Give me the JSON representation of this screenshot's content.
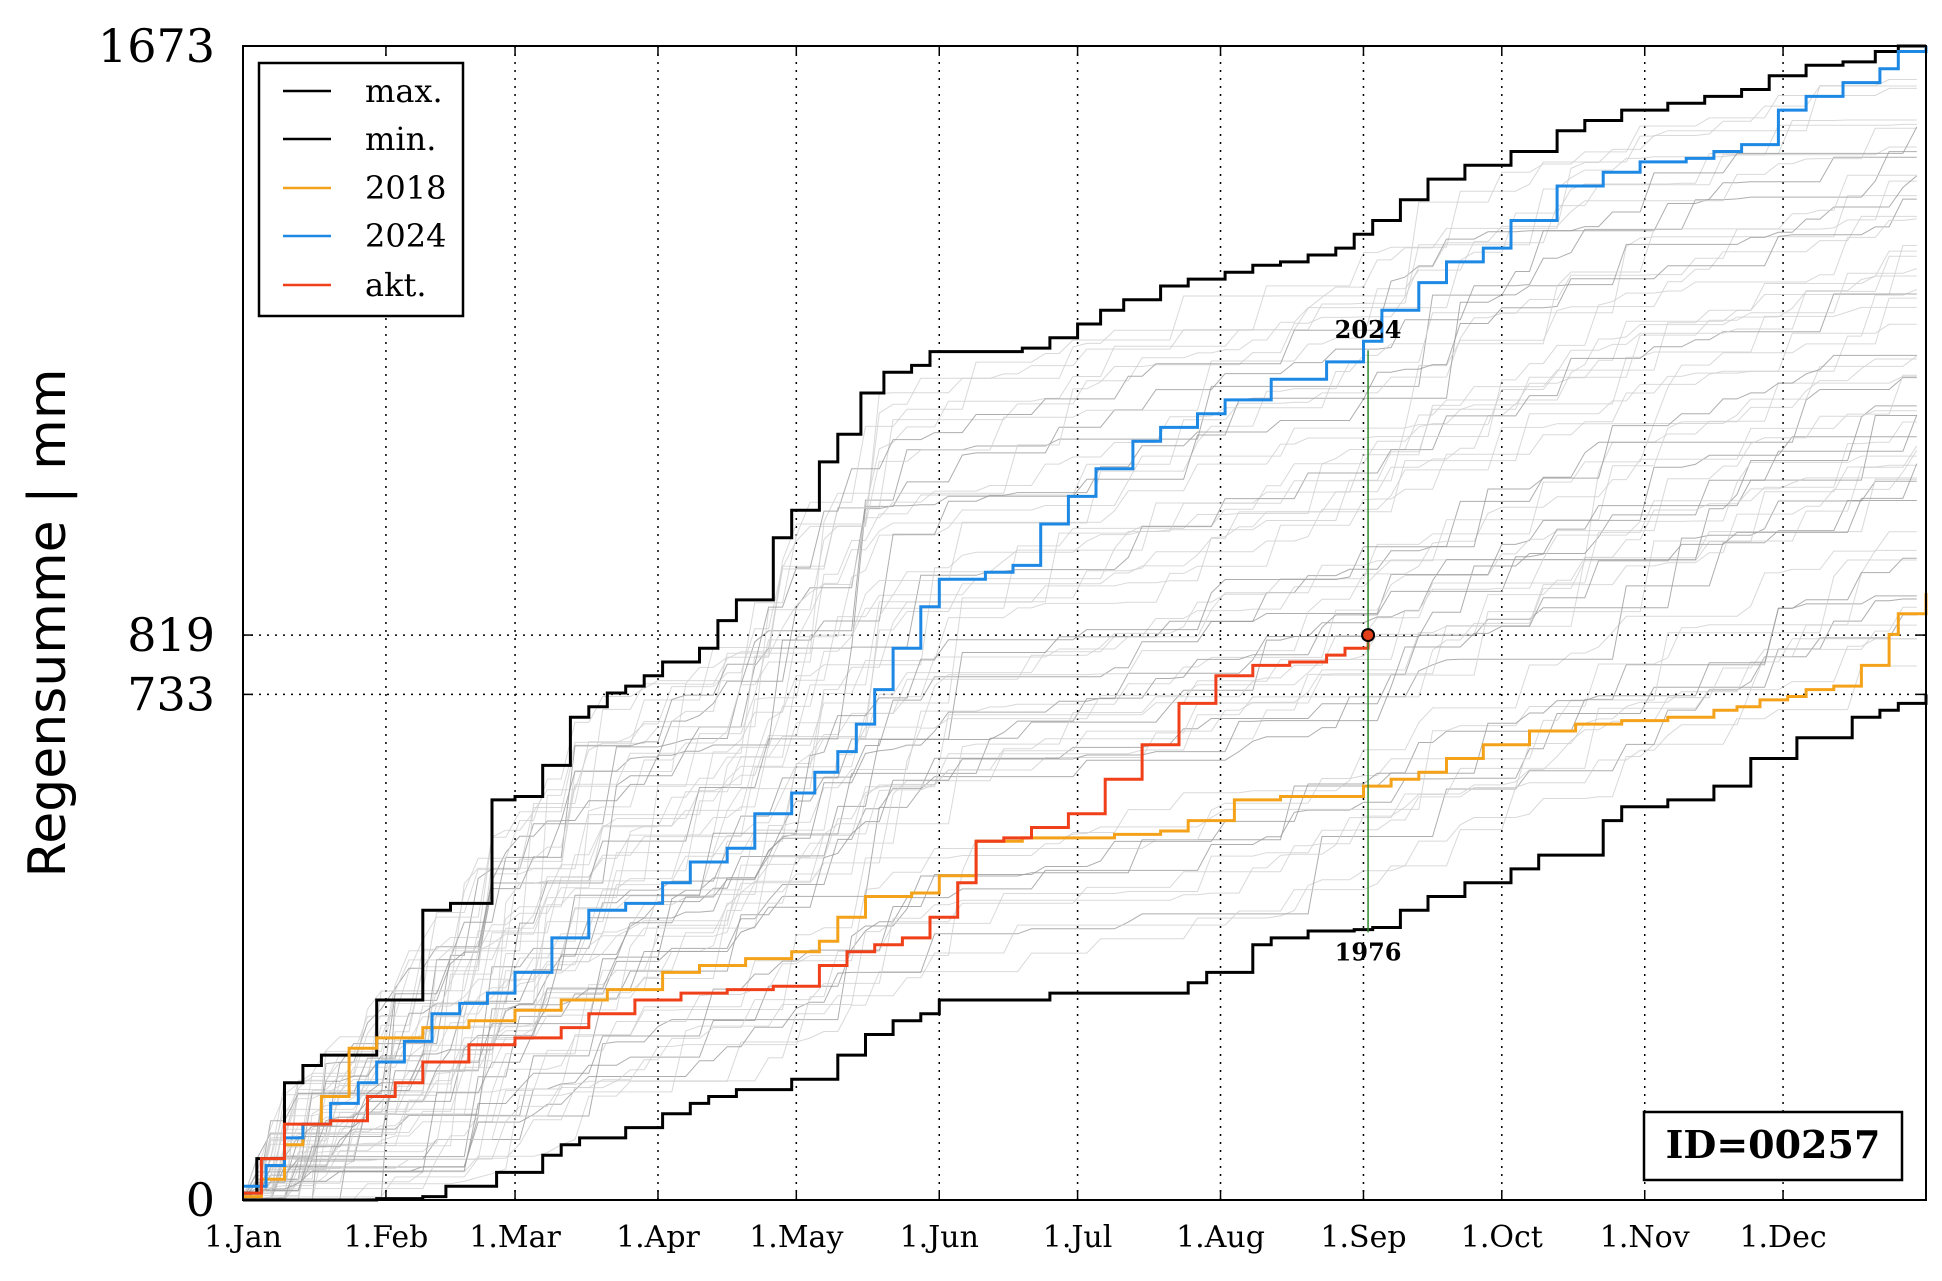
{
  "chart_data": {
    "type": "line",
    "ylabel": "Regensumme | mm",
    "xlabel": "",
    "ylim": [
      0,
      1673
    ],
    "x_day_range": [
      1,
      366
    ],
    "x_tick_labels": [
      "1.Jan",
      "1.Feb",
      "1.Mar",
      "1.Apr",
      "1.May",
      "1.Jun",
      "1.Jul",
      "1.Aug",
      "1.Sep",
      "1.Oct",
      "1.Nov",
      "1.Dec"
    ],
    "x_tick_days": [
      1,
      32,
      60,
      91,
      121,
      152,
      182,
      213,
      244,
      274,
      305,
      335
    ],
    "y_tick_labels": [
      "0",
      "733",
      "819",
      "1673"
    ],
    "y_tick_values": [
      0,
      733,
      819,
      1673
    ],
    "reference_lines_y": [
      733,
      819
    ],
    "grid": "dotted",
    "legend_position": "top-left",
    "legend": [
      "max.",
      "min.",
      "2018",
      "2024",
      "akt."
    ],
    "current_point": {
      "day": 245,
      "value": 819
    },
    "range_marker": {
      "day": 245,
      "top_value": 1232,
      "bottom_value": 388,
      "top_label": "2024",
      "bottom_label": "1976"
    },
    "id_label": "ID=00257",
    "series": [
      {
        "name": "max.",
        "color": "#000000",
        "x": [
          1,
          4,
          10,
          14,
          18,
          30,
          40,
          46,
          55,
          60,
          66,
          72,
          76,
          80,
          84,
          88,
          92,
          100,
          104,
          108,
          116,
          120,
          126,
          130,
          135,
          140,
          146,
          150,
          160,
          170,
          176,
          182,
          187,
          192,
          200,
          206,
          214,
          220,
          226,
          232,
          238,
          242,
          246,
          252,
          258,
          266,
          276,
          286,
          292,
          300,
          310,
          318,
          326,
          332,
          340,
          348,
          355,
          360,
          366
        ],
        "y": [
          10,
          60,
          170,
          195,
          210,
          290,
          420,
          430,
          580,
          585,
          630,
          700,
          715,
          735,
          745,
          760,
          780,
          800,
          840,
          870,
          960,
          1000,
          1070,
          1110,
          1170,
          1200,
          1210,
          1230,
          1230,
          1235,
          1250,
          1270,
          1290,
          1305,
          1325,
          1335,
          1345,
          1355,
          1360,
          1370,
          1380,
          1400,
          1420,
          1450,
          1480,
          1500,
          1520,
          1550,
          1565,
          1580,
          1590,
          1600,
          1610,
          1630,
          1645,
          1650,
          1665,
          1673,
          1673
        ]
      },
      {
        "name": "min.",
        "color": "#000000",
        "x": [
          1,
          20,
          30,
          40,
          45,
          56,
          66,
          70,
          74,
          84,
          92,
          98,
          102,
          108,
          120,
          130,
          136,
          142,
          148,
          152,
          166,
          176,
          200,
          206,
          210,
          220,
          224,
          232,
          242,
          246,
          252,
          258,
          266,
          276,
          282,
          296,
          300,
          310,
          320,
          328,
          338,
          350,
          356,
          360,
          366
        ],
        "y": [
          0,
          0,
          2,
          5,
          20,
          40,
          65,
          80,
          90,
          105,
          125,
          140,
          150,
          160,
          175,
          210,
          240,
          260,
          270,
          290,
          290,
          300,
          300,
          315,
          330,
          370,
          380,
          390,
          392,
          395,
          420,
          440,
          460,
          480,
          500,
          550,
          570,
          580,
          600,
          640,
          670,
          700,
          710,
          720,
          733
        ]
      },
      {
        "name": "2018",
        "color": "#f5a21b",
        "x": [
          1,
          5,
          10,
          14,
          18,
          24,
          30,
          40,
          50,
          60,
          70,
          80,
          92,
          100,
          110,
          120,
          126,
          130,
          136,
          140,
          146,
          152,
          160,
          170,
          178,
          190,
          200,
          206,
          216,
          226,
          236,
          244,
          250,
          256,
          262,
          270,
          280,
          290,
          300,
          310,
          320,
          325,
          330,
          336,
          340,
          346,
          352,
          358,
          360,
          366
        ],
        "y": [
          5,
          30,
          80,
          110,
          150,
          220,
          235,
          250,
          260,
          275,
          290,
          305,
          330,
          340,
          350,
          360,
          375,
          410,
          440,
          440,
          445,
          470,
          520,
          525,
          525,
          530,
          535,
          550,
          580,
          585,
          585,
          600,
          610,
          620,
          640,
          660,
          680,
          690,
          695,
          700,
          710,
          715,
          725,
          730,
          740,
          745,
          775,
          820,
          850,
          880
        ]
      },
      {
        "name": "2024",
        "color": "#1e88e5",
        "x": [
          1,
          6,
          10,
          14,
          20,
          26,
          30,
          36,
          42,
          48,
          54,
          60,
          68,
          76,
          84,
          92,
          98,
          106,
          112,
          120,
          125,
          130,
          134,
          138,
          142,
          148,
          152,
          162,
          168,
          174,
          180,
          186,
          194,
          200,
          208,
          214,
          224,
          236,
          244,
          248,
          256,
          262,
          270,
          276,
          286,
          296,
          304,
          314,
          320,
          326,
          334,
          340,
          348,
          356,
          360,
          366
        ],
        "y": [
          20,
          50,
          90,
          110,
          140,
          170,
          200,
          230,
          270,
          285,
          300,
          330,
          380,
          420,
          430,
          460,
          490,
          510,
          560,
          590,
          620,
          650,
          690,
          740,
          800,
          860,
          900,
          910,
          920,
          980,
          1020,
          1060,
          1100,
          1120,
          1140,
          1160,
          1190,
          1215,
          1245,
          1290,
          1330,
          1360,
          1380,
          1420,
          1470,
          1490,
          1505,
          1510,
          1520,
          1530,
          1580,
          1600,
          1620,
          1640,
          1665,
          1673
        ]
      },
      {
        "name": "akt.",
        "color": "#f0401a",
        "x": [
          1,
          5,
          10,
          20,
          28,
          34,
          40,
          50,
          60,
          70,
          76,
          86,
          96,
          106,
          116,
          126,
          132,
          138,
          144,
          150,
          156,
          160,
          166,
          172,
          180,
          188,
          196,
          204,
          212,
          220,
          228,
          236,
          240,
          245
        ],
        "y": [
          10,
          60,
          110,
          115,
          150,
          170,
          200,
          225,
          235,
          250,
          270,
          290,
          300,
          305,
          310,
          340,
          360,
          370,
          380,
          410,
          460,
          520,
          525,
          540,
          560,
          610,
          660,
          720,
          760,
          775,
          780,
          790,
          800,
          819
        ]
      }
    ]
  }
}
